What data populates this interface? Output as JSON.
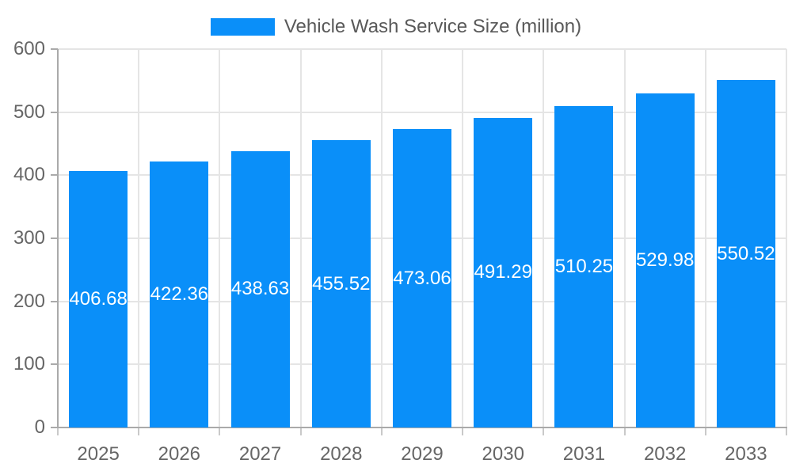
{
  "legend": {
    "label": "Vehicle Wash Service Size (million)"
  },
  "colors": {
    "bar": "#0A8FF9",
    "grid": "#E5E5E5",
    "axis": "#AAAAAA",
    "tick": "#C9C9C9",
    "tick_text": "#666666",
    "legend_text": "#595959",
    "value_label_text": "#FFFFFF",
    "background": "#FFFFFF"
  },
  "chart_data": {
    "type": "bar",
    "title": "Vehicle Wash Service Size (million)",
    "categories": [
      "2025",
      "2026",
      "2027",
      "2028",
      "2029",
      "2030",
      "2031",
      "2032",
      "2033"
    ],
    "values": [
      406.68,
      422.36,
      438.63,
      455.52,
      473.06,
      491.29,
      510.25,
      529.98,
      550.52
    ],
    "xlabel": "",
    "ylabel": "",
    "ylim": [
      0,
      600
    ],
    "ytick_step": 100,
    "yticks": [
      "0",
      "100",
      "200",
      "300",
      "400",
      "500",
      "600"
    ],
    "grid": true,
    "legend_position": "top",
    "value_labels": "inside-center"
  }
}
